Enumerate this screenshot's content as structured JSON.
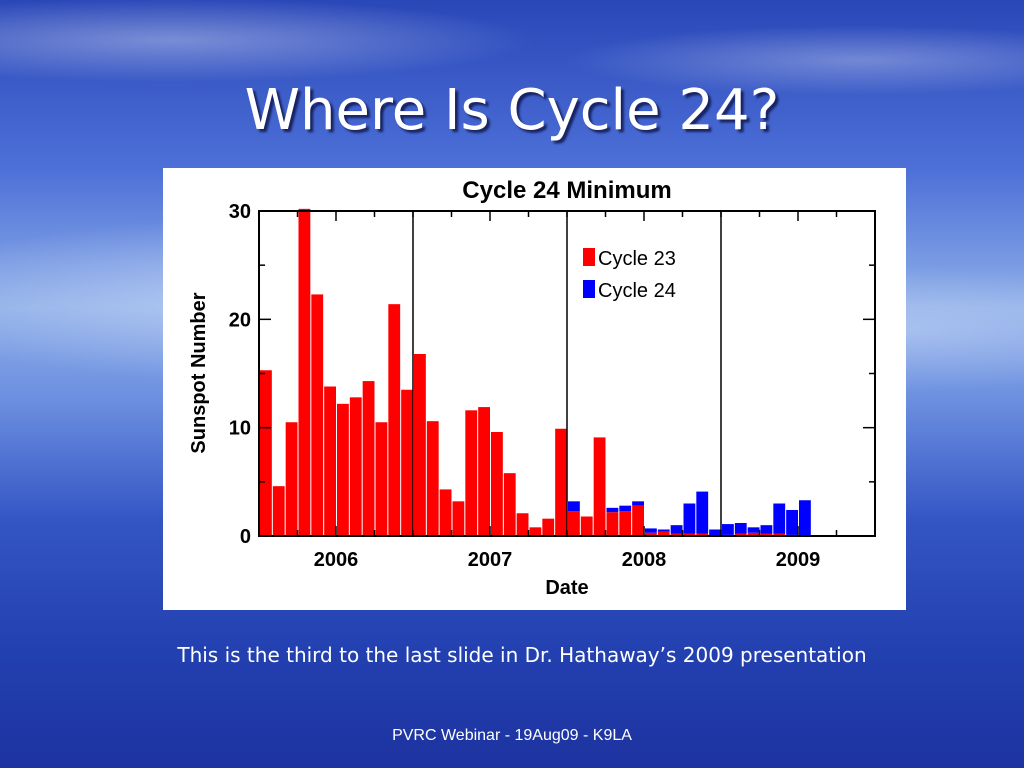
{
  "slide": {
    "title": "Where Is Cycle 24?",
    "caption": "This is the third to the last slide in Dr. Hathaway’s 2009 presentation",
    "footer": "PVRC Webinar - 19Aug09 - K9LA"
  },
  "chart_data": {
    "type": "bar",
    "stacked": true,
    "title": "Cycle 24 Minimum",
    "xlabel": "Date",
    "ylabel": "Sunspot Number",
    "ylim": [
      0,
      30
    ],
    "y_ticks": [
      "0",
      "10",
      "20",
      "30"
    ],
    "x_tick_labels": [
      "2006",
      "2007",
      "2008",
      "2009"
    ],
    "x_range_years": [
      2005.5,
      2009.5
    ],
    "year_divider_lines": [
      2006.5,
      2007.5,
      2008.5
    ],
    "legend_position": "top-right",
    "months": [
      "2005-07",
      "2005-08",
      "2005-09",
      "2005-10",
      "2005-11",
      "2005-12",
      "2006-01",
      "2006-02",
      "2006-03",
      "2006-04",
      "2006-05",
      "2006-06",
      "2006-07",
      "2006-08",
      "2006-09",
      "2006-10",
      "2006-11",
      "2006-12",
      "2007-01",
      "2007-02",
      "2007-03",
      "2007-04",
      "2007-05",
      "2007-06",
      "2007-07",
      "2007-08",
      "2007-09",
      "2007-10",
      "2007-11",
      "2007-12",
      "2008-01",
      "2008-02",
      "2008-03",
      "2008-04",
      "2008-05",
      "2008-06",
      "2008-07",
      "2008-08",
      "2008-09",
      "2008-10",
      "2008-11",
      "2008-12",
      "2009-01",
      "2009-02",
      "2009-03",
      "2009-04",
      "2009-05",
      "2009-06",
      "2009-07",
      "2009-08",
      "2009-09",
      "2009-10",
      "2009-11",
      "2009-12"
    ],
    "series": [
      {
        "name": "Cycle 23",
        "color": "#ff0000",
        "values": [
          15.3,
          4.6,
          10.5,
          30.2,
          22.3,
          13.8,
          12.2,
          12.8,
          14.3,
          10.5,
          21.4,
          13.5,
          16.8,
          10.6,
          4.3,
          3.2,
          11.6,
          11.9,
          9.6,
          5.8,
          2.1,
          0.8,
          1.6,
          9.9,
          2.3,
          1.8,
          9.1,
          2.2,
          2.3,
          2.8,
          0.3,
          0.4,
          0.2,
          0.2,
          0.2,
          0,
          0.1,
          0.2,
          0.3,
          0.2,
          0.2,
          0.1,
          0,
          0,
          0,
          0,
          0,
          0,
          0,
          0,
          0,
          0,
          0,
          0
        ]
      },
      {
        "name": "Cycle 24",
        "color": "#0000ff",
        "values": [
          0,
          0,
          0,
          0,
          0,
          0,
          0,
          0,
          0,
          0,
          0,
          0,
          0,
          0,
          0,
          0,
          0,
          0,
          0,
          0,
          0,
          0,
          0,
          0,
          0.9,
          0,
          0,
          0.4,
          0.5,
          0.4,
          0.4,
          0.2,
          0.8,
          2.8,
          3.9,
          0.6,
          1.0,
          1.0,
          0.5,
          0.8,
          2.8,
          2.3,
          3.3,
          0,
          0,
          0,
          0,
          0,
          0,
          0,
          0,
          0,
          0,
          0
        ]
      }
    ]
  }
}
